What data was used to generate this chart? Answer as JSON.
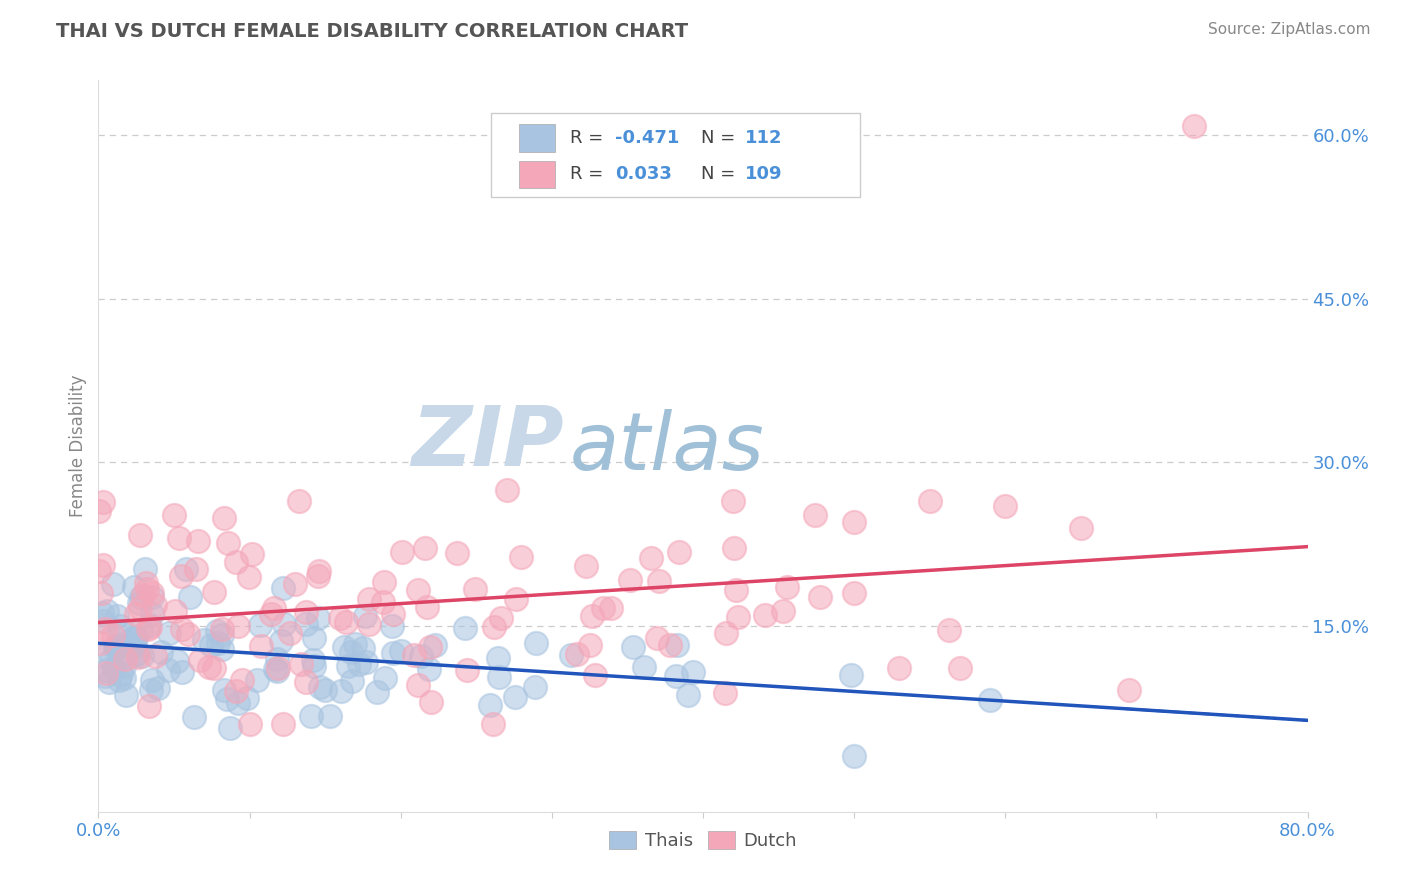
{
  "title": "THAI VS DUTCH FEMALE DISABILITY CORRELATION CHART",
  "source_text": "Source: ZipAtlas.com",
  "ylabel": "Female Disability",
  "x_min": 0.0,
  "x_max": 0.8,
  "y_min": -0.02,
  "y_max": 0.65,
  "y_ticks": [
    0.15,
    0.3,
    0.45,
    0.6
  ],
  "y_tick_labels": [
    "15.0%",
    "30.0%",
    "45.0%",
    "60.0%"
  ],
  "thai_color": "#a8c4e0",
  "dutch_color": "#f4a7b9",
  "thai_line_color": "#2255bb",
  "dutch_line_color": "#dd4466",
  "thai_R": -0.471,
  "thai_N": 112,
  "dutch_R": 0.033,
  "dutch_N": 109,
  "watermark_zip": "ZIP",
  "watermark_atlas": "atlas",
  "watermark_zip_color": "#c8d8e8",
  "watermark_atlas_color": "#a0c0d8",
  "legend_label_thai": "Thais",
  "legend_label_dutch": "Dutch",
  "background_color": "#ffffff",
  "grid_color": "#cccccc",
  "title_color": "#555555",
  "tick_label_color": "#4a90d9",
  "source_color": "#888888"
}
